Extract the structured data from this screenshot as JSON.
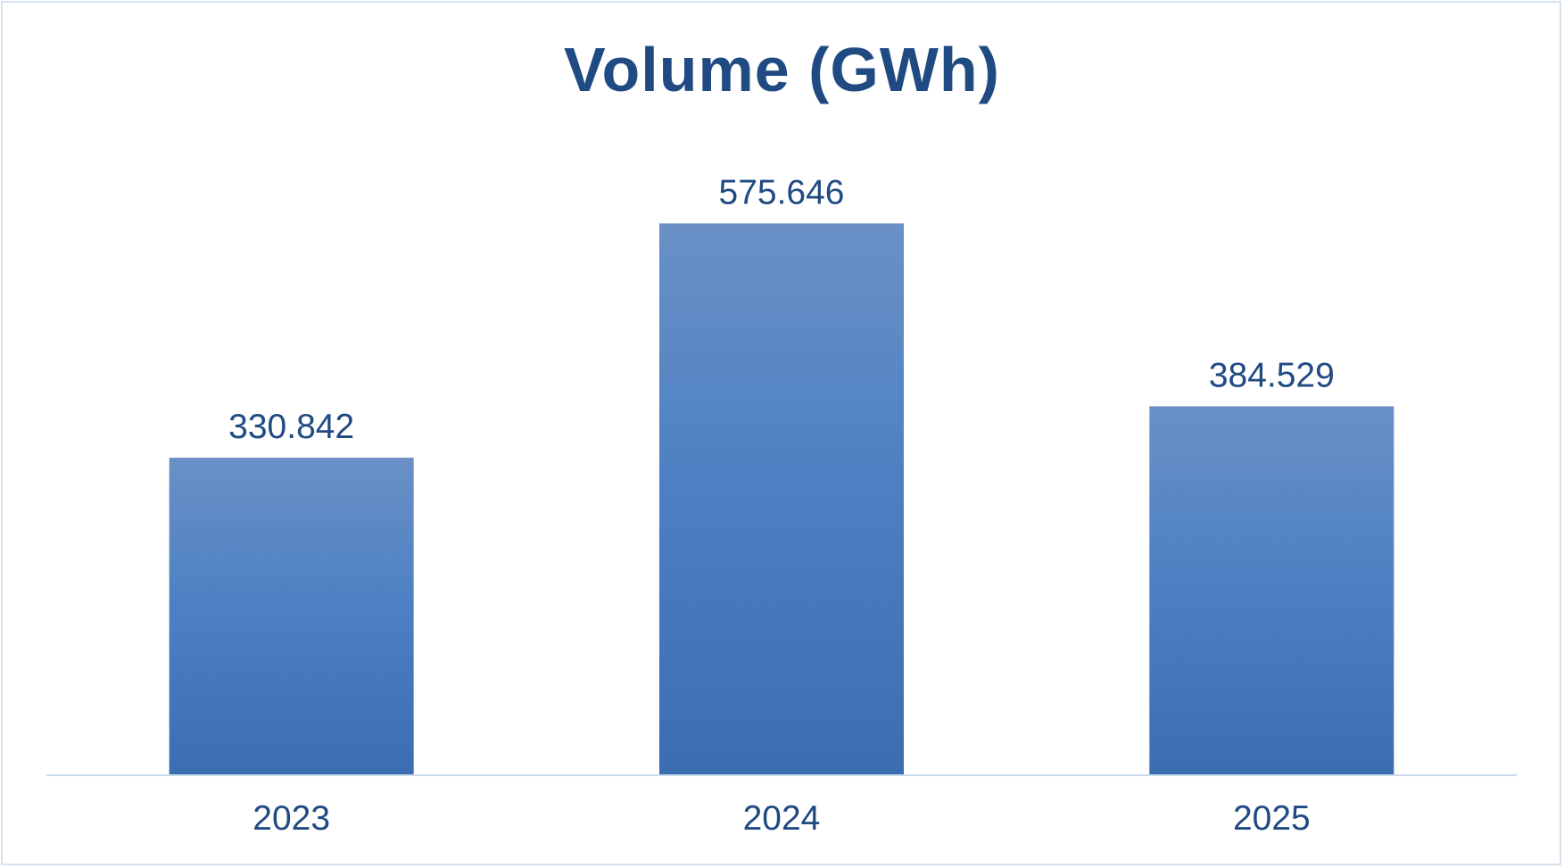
{
  "chart_data": {
    "type": "bar",
    "title": "Volume (GWh)",
    "categories": [
      "2023",
      "2024",
      "2025"
    ],
    "values": [
      330.842,
      575.646,
      384.529
    ],
    "value_labels": [
      "330.842",
      "575.646",
      "384.529"
    ],
    "xlabel": "",
    "ylabel": "",
    "ylim": [
      0,
      700
    ],
    "grid": false,
    "legend": "none",
    "colors": {
      "title": "#1f4a82",
      "text": "#1f4a82",
      "bar_top": "#6a90c6",
      "bar_mid": "#4d81c3",
      "bar_bottom": "#3a6eb0",
      "axis": "#cbdaea",
      "frame": "#d6e2ef"
    }
  }
}
